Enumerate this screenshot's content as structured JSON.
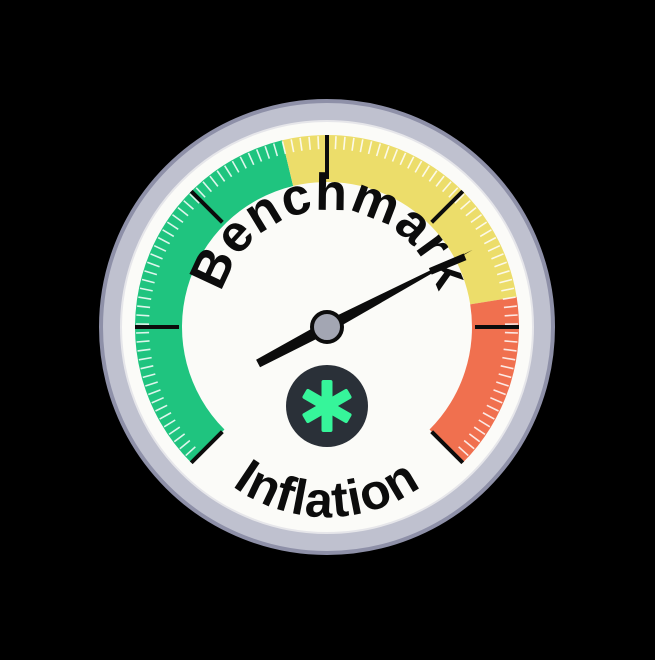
{
  "badge": {
    "top_text": "Benchmark",
    "bottom_text": "Inflation",
    "center_icon": "asterisk-icon"
  },
  "gauge": {
    "zones": [
      {
        "name": "green",
        "color": "#1fc47f"
      },
      {
        "name": "yellow",
        "color": "#ecdd6a"
      },
      {
        "name": "red",
        "color": "#f0704f"
      }
    ],
    "needle_reading_fraction": 0.73
  },
  "colors": {
    "background": "#000000",
    "rim": "#bfc1cf",
    "rim_outline": "#8e90a8",
    "face": "#fbfbf8",
    "ink": "#0c0c0c",
    "hub": "#a3a6b3",
    "icon_disc": "#2a3038",
    "icon_accent": "#36f59a"
  }
}
